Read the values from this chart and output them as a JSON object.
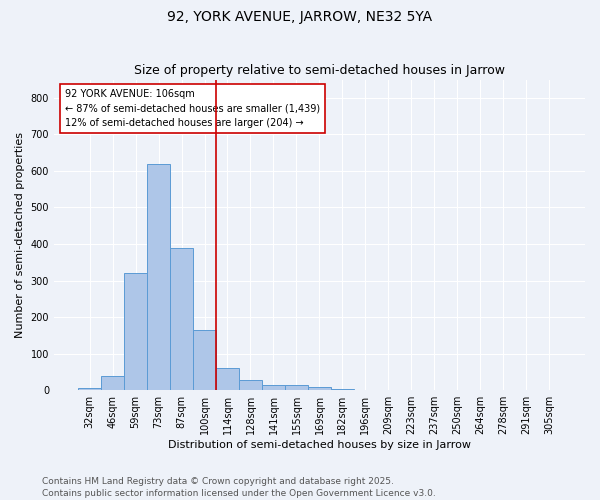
{
  "title": "92, YORK AVENUE, JARROW, NE32 5YA",
  "subtitle": "Size of property relative to semi-detached houses in Jarrow",
  "xlabel": "Distribution of semi-detached houses by size in Jarrow",
  "ylabel": "Number of semi-detached properties",
  "bar_values": [
    5,
    40,
    320,
    620,
    390,
    165,
    60,
    28,
    15,
    15,
    10,
    3,
    1,
    1,
    1,
    1,
    0,
    0,
    0,
    0,
    0
  ],
  "categories": [
    "32sqm",
    "46sqm",
    "59sqm",
    "73sqm",
    "87sqm",
    "100sqm",
    "114sqm",
    "128sqm",
    "141sqm",
    "155sqm",
    "169sqm",
    "182sqm",
    "196sqm",
    "209sqm",
    "223sqm",
    "237sqm",
    "250sqm",
    "264sqm",
    "278sqm",
    "291sqm",
    "305sqm"
  ],
  "bar_color": "#aec6e8",
  "bar_edge_color": "#5b9bd5",
  "vline_color": "#cc0000",
  "property_line_index": 5,
  "annotation_title": "92 YORK AVENUE: 106sqm",
  "annotation_smaller": "← 87% of semi-detached houses are smaller (1,439)",
  "annotation_larger": "12% of semi-detached houses are larger (204) →",
  "annotation_box_color": "#ffffff",
  "annotation_box_edge": "#cc0000",
  "ylim": [
    0,
    850
  ],
  "yticks": [
    0,
    100,
    200,
    300,
    400,
    500,
    600,
    700,
    800
  ],
  "footer": "Contains HM Land Registry data © Crown copyright and database right 2025.\nContains public sector information licensed under the Open Government Licence v3.0.",
  "background_color": "#eef2f9",
  "grid_color": "#ffffff",
  "title_fontsize": 10,
  "subtitle_fontsize": 9,
  "axis_label_fontsize": 8,
  "tick_fontsize": 7,
  "annotation_fontsize": 7,
  "footer_fontsize": 6.5
}
